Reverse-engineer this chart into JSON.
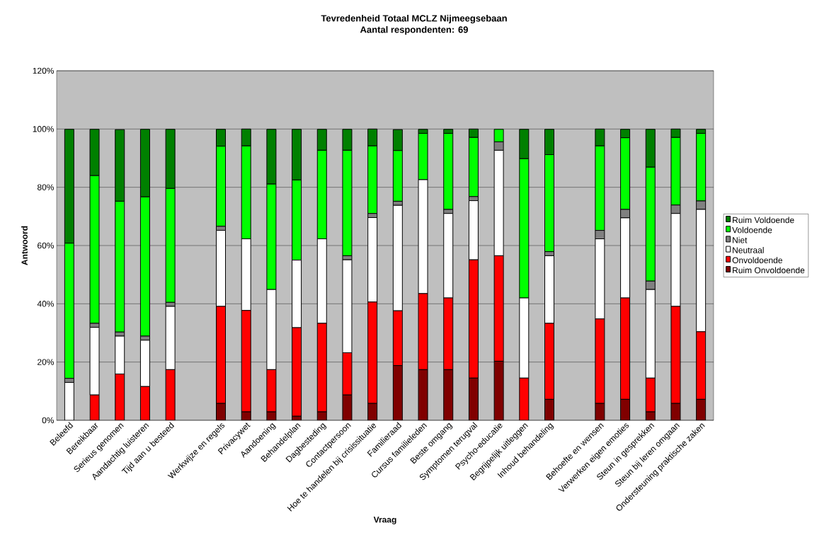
{
  "chart_data": {
    "type": "bar",
    "stacked": true,
    "title": "Tevredenheid Totaal MCLZ Nijmeegsebaan",
    "subtitle": "Aantal respondenten: 69",
    "xlabel": "Vraag",
    "ylabel": "Antwoord",
    "categories": [
      "Beleefd",
      "Bereikbaar",
      "Serieus genomen",
      "Aandachtig luisteren",
      "Tijd aan u besteed",
      null,
      "Werkwijze en regels",
      "Privacywet",
      "Aandoening",
      "Behandelplan",
      "Dagbesteding",
      "Contactpersoon",
      "Hoe te handelen bij crisissituatie",
      "Familieraad",
      "Cursus familieleden",
      "Beste omgang",
      "Symptomen terugval",
      "Psycho-educatie",
      "Begrijpelijk uitleggen",
      "Inhoud behandeling",
      null,
      "Behoefte en wensen",
      "Verwerken eigen emoties",
      "Steun in gesprekken",
      "Steun bij leren omgaan",
      "Ondersteuning praktische zaken"
    ],
    "series": [
      {
        "name": "Ruim Onvoldoende",
        "color": "#800000",
        "values": [
          0,
          0,
          0,
          0,
          0,
          null,
          5.8,
          2.9,
          2.9,
          1.4,
          2.9,
          8.7,
          5.8,
          18.8,
          17.4,
          17.4,
          14.5,
          20.3,
          0,
          7.2,
          null,
          5.8,
          7.2,
          2.9,
          5.8,
          7.2
        ]
      },
      {
        "name": "Onvoldoende",
        "color": "#ff0000",
        "values": [
          0,
          8.7,
          15.9,
          11.6,
          17.4,
          null,
          33.3,
          34.8,
          14.5,
          30.4,
          30.4,
          14.5,
          34.8,
          18.8,
          26.1,
          24.6,
          40.6,
          36.2,
          14.5,
          26.1,
          null,
          29.0,
          34.8,
          11.6,
          33.3,
          23.2
        ]
      },
      {
        "name": "Neutraal",
        "color": "#ffffff",
        "values": [
          13.0,
          23.2,
          13.0,
          15.9,
          21.7,
          null,
          26.1,
          24.6,
          27.5,
          23.2,
          29.0,
          31.9,
          29.0,
          36.2,
          39.1,
          29.0,
          20.3,
          36.2,
          27.5,
          23.2,
          null,
          27.5,
          27.5,
          30.4,
          31.9,
          42.0
        ]
      },
      {
        "name": "Niet",
        "color": "#808080",
        "values": [
          1.4,
          1.4,
          1.4,
          1.4,
          1.4,
          null,
          1.4,
          0,
          0,
          0,
          0,
          1.4,
          1.4,
          1.4,
          0,
          1.4,
          1.4,
          2.9,
          0,
          1.4,
          null,
          2.9,
          2.9,
          2.9,
          2.9,
          2.9
        ]
      },
      {
        "name": "Voldoende",
        "color": "#00ff00",
        "values": [
          46.4,
          50.7,
          44.9,
          47.8,
          39.1,
          null,
          27.5,
          31.9,
          36.2,
          27.5,
          30.4,
          36.2,
          23.2,
          17.4,
          15.9,
          26.1,
          20.3,
          4.3,
          47.8,
          33.3,
          null,
          29.0,
          24.6,
          39.1,
          23.2,
          23.2
        ]
      },
      {
        "name": "Ruim Voldoende",
        "color": "#008000",
        "values": [
          39.1,
          15.9,
          24.6,
          23.2,
          20.3,
          null,
          5.8,
          5.8,
          18.8,
          17.4,
          7.2,
          7.2,
          5.8,
          7.2,
          1.4,
          1.4,
          2.9,
          0,
          10.1,
          8.7,
          null,
          5.8,
          2.9,
          13.0,
          2.9,
          1.4
        ]
      }
    ],
    "ylim": [
      0,
      120
    ],
    "yticks": [
      {
        "value": 0,
        "label": "0%"
      },
      {
        "value": 20,
        "label": "20%"
      },
      {
        "value": 40,
        "label": "40%"
      },
      {
        "value": 60,
        "label": "60%"
      },
      {
        "value": 80,
        "label": "80%"
      },
      {
        "value": 100,
        "label": "100%"
      },
      {
        "value": 120,
        "label": "120%"
      }
    ],
    "grid": "y",
    "legend": "right"
  }
}
